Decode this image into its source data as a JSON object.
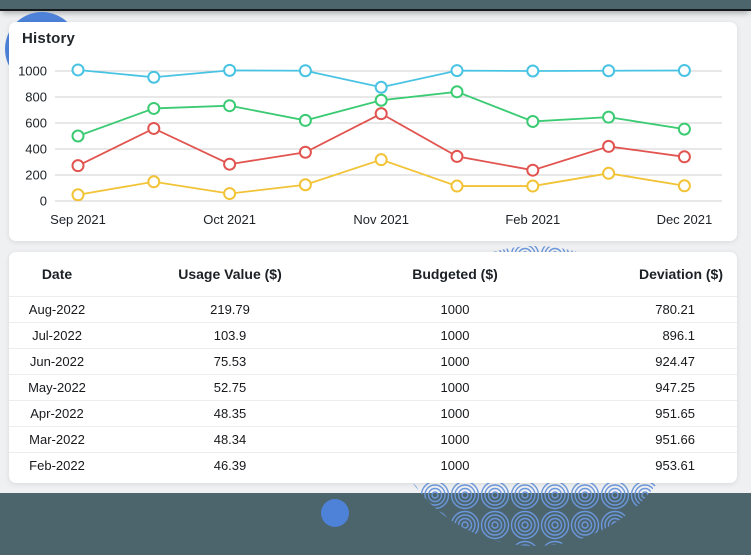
{
  "frame": {
    "bar_color": "#4c646c",
    "page_background": "#eff0f1"
  },
  "decor": {
    "corner_circle_color": "#4d82d8",
    "dot_circle_color": "#4d82d8",
    "rosette_color": "#6b97dd"
  },
  "history": {
    "title": "History"
  },
  "chart_data": {
    "type": "line",
    "title": "History",
    "x_tick_labels": [
      "Sep 2021",
      "Oct 2021",
      "Nov 2021",
      "Feb 2021",
      "Dec 2021"
    ],
    "x_tick_point_indices": [
      0,
      2,
      4,
      6,
      8
    ],
    "y_ticks": [
      1000,
      800,
      600,
      400,
      200,
      0
    ],
    "ylim": [
      0,
      1000
    ],
    "grid": true,
    "legend": false,
    "marker": "open-circle",
    "grid_color": "#d0d0d0",
    "series": [
      {
        "name": "series-cyan",
        "color": "#49c3e3",
        "values": [
          1008,
          952,
          1005,
          1002,
          875,
          1003,
          1000,
          1002,
          1004
        ]
      },
      {
        "name": "series-green",
        "color": "#3bcb73",
        "values": [
          500,
          712,
          733,
          620,
          775,
          840,
          612,
          645,
          553
        ]
      },
      {
        "name": "series-red",
        "color": "#e15450",
        "values": [
          272,
          558,
          283,
          375,
          672,
          343,
          237,
          420,
          340
        ]
      },
      {
        "name": "series-yellow",
        "color": "#f2c336",
        "values": [
          48,
          148,
          57,
          125,
          318,
          115,
          115,
          213,
          117
        ]
      }
    ]
  },
  "table": {
    "columns": [
      "Date",
      "Usage Value ($)",
      "Budgeted ($)",
      "Deviation ($)"
    ],
    "rows": [
      {
        "date": "Aug-2022",
        "usage": "219.79",
        "budgeted": "1000",
        "deviation": "780.21"
      },
      {
        "date": "Jul-2022",
        "usage": "103.9",
        "budgeted": "1000",
        "deviation": "896.1"
      },
      {
        "date": "Jun-2022",
        "usage": "75.53",
        "budgeted": "1000",
        "deviation": "924.47"
      },
      {
        "date": "May-2022",
        "usage": "52.75",
        "budgeted": "1000",
        "deviation": "947.25"
      },
      {
        "date": "Apr-2022",
        "usage": "48.35",
        "budgeted": "1000",
        "deviation": "951.65"
      },
      {
        "date": "Mar-2022",
        "usage": "48.34",
        "budgeted": "1000",
        "deviation": "951.66"
      },
      {
        "date": "Feb-2022",
        "usage": "46.39",
        "budgeted": "1000",
        "deviation": "953.61"
      }
    ]
  }
}
